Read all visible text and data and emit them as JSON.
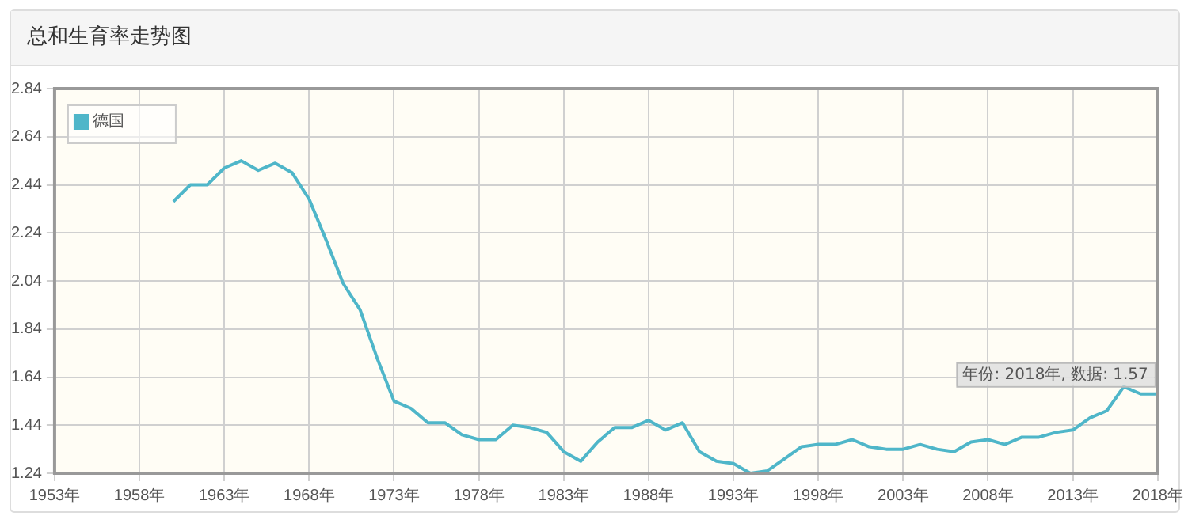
{
  "chart_data": {
    "type": "line",
    "title": "总和生育率走势图",
    "x": [
      1960,
      1961,
      1962,
      1963,
      1964,
      1965,
      1966,
      1967,
      1968,
      1969,
      1970,
      1971,
      1972,
      1973,
      1974,
      1975,
      1976,
      1977,
      1978,
      1979,
      1980,
      1981,
      1982,
      1983,
      1984,
      1985,
      1986,
      1987,
      1988,
      1989,
      1990,
      1991,
      1992,
      1993,
      1994,
      1995,
      1996,
      1997,
      1998,
      1999,
      2000,
      2001,
      2002,
      2003,
      2004,
      2005,
      2006,
      2007,
      2008,
      2009,
      2010,
      2011,
      2012,
      2013,
      2014,
      2015,
      2016,
      2017,
      2018
    ],
    "series": [
      {
        "name": "德国",
        "color": "#4fb6c9",
        "values": [
          2.37,
          2.44,
          2.44,
          2.51,
          2.54,
          2.5,
          2.53,
          2.49,
          2.38,
          2.21,
          2.03,
          1.92,
          1.72,
          1.54,
          1.51,
          1.45,
          1.45,
          1.4,
          1.38,
          1.38,
          1.44,
          1.43,
          1.41,
          1.33,
          1.29,
          1.37,
          1.43,
          1.43,
          1.46,
          1.42,
          1.45,
          1.33,
          1.29,
          1.28,
          1.24,
          1.25,
          1.3,
          1.35,
          1.36,
          1.36,
          1.38,
          1.35,
          1.34,
          1.34,
          1.36,
          1.34,
          1.33,
          1.37,
          1.38,
          1.36,
          1.39,
          1.39,
          1.41,
          1.42,
          1.47,
          1.5,
          1.6,
          1.57,
          1.57
        ]
      }
    ],
    "xlim": [
      1953,
      2018
    ],
    "xticks": [
      {
        "value": 1953,
        "label": "1953年"
      },
      {
        "value": 1958,
        "label": "1958年"
      },
      {
        "value": 1963,
        "label": "1963年"
      },
      {
        "value": 1968,
        "label": "1968年"
      },
      {
        "value": 1973,
        "label": "1973年"
      },
      {
        "value": 1978,
        "label": "1978年"
      },
      {
        "value": 1983,
        "label": "1983年"
      },
      {
        "value": 1988,
        "label": "1988年"
      },
      {
        "value": 1993,
        "label": "1993年"
      },
      {
        "value": 1998,
        "label": "1998年"
      },
      {
        "value": 2003,
        "label": "2003年"
      },
      {
        "value": 2008,
        "label": "2008年"
      },
      {
        "value": 2013,
        "label": "2013年"
      },
      {
        "value": 2018,
        "label": "2018年"
      }
    ],
    "ylim": [
      1.24,
      2.84
    ],
    "yticks": [
      1.24,
      1.44,
      1.64,
      1.84,
      2.04,
      2.24,
      2.44,
      2.64,
      2.84
    ],
    "annotations": [
      {
        "text": "年份: 2018年, 数据: 1.57",
        "x": 2018,
        "y": 1.57
      }
    ],
    "grid": true,
    "legend": "top left",
    "marker": "none",
    "line_style": "solid"
  }
}
